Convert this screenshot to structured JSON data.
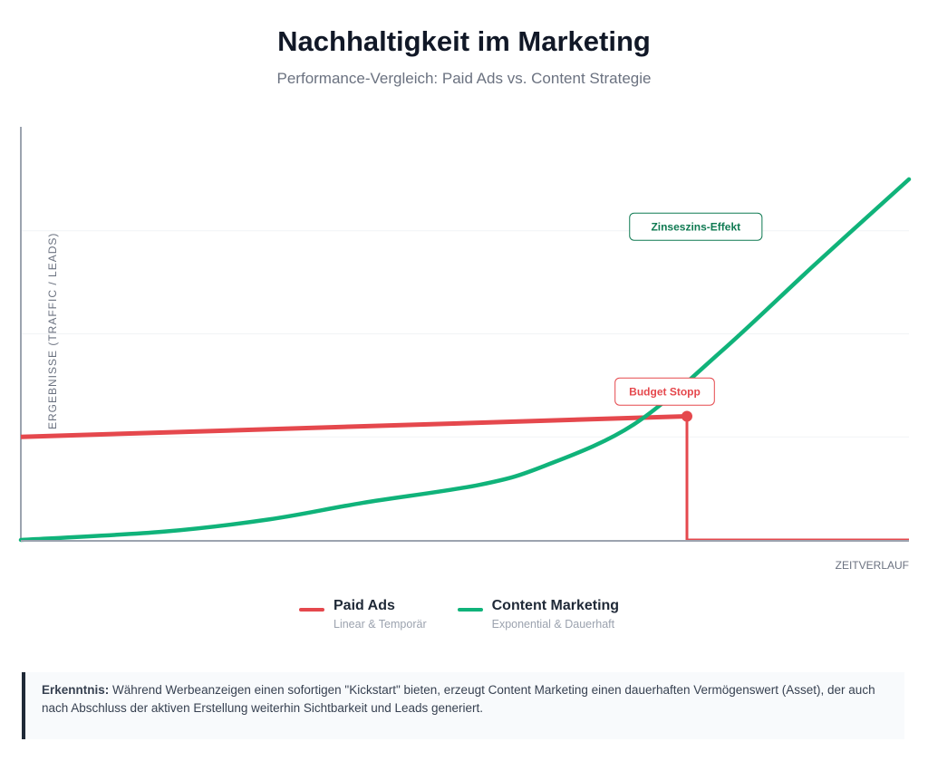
{
  "chart_data": {
    "type": "line",
    "title": "Nachhaltigkeit im Marketing",
    "subtitle": "Performance-Vergleich: Paid Ads vs. Content Strategie",
    "xlabel": "ZEITVERLAUF",
    "ylabel": "ERGEBNISSE (TRAFFIC / LEADS)",
    "xlim": [
      0,
      100
    ],
    "ylim": [
      0,
      100
    ],
    "grid": true,
    "legend_position": "bottom",
    "series": [
      {
        "name": "Paid Ads",
        "description": "Linear & Temporär",
        "color": "#e5484d",
        "points": [
          [
            0,
            25
          ],
          [
            75,
            30
          ],
          [
            75,
            0
          ],
          [
            100,
            0
          ]
        ]
      },
      {
        "name": "Content Marketing",
        "description": "Exponential & Dauerhaft",
        "color": "#10b37a",
        "points": [
          [
            0,
            0
          ],
          [
            16,
            2
          ],
          [
            28,
            5
          ],
          [
            38.5,
            9
          ],
          [
            51.7,
            13.4
          ],
          [
            59,
            18
          ],
          [
            69,
            28
          ],
          [
            79,
            46
          ],
          [
            89.5,
            67
          ],
          [
            100,
            87.5
          ]
        ]
      }
    ],
    "annotations": [
      {
        "text": "Zinseszins-Effekt",
        "x": 76,
        "y": 76,
        "color": "#0f7a52"
      },
      {
        "text": "Budget Stopp",
        "x": 72.5,
        "y": 36,
        "color": "#e5484d"
      }
    ]
  },
  "insight": {
    "label": "Erkenntnis:",
    "text": " Während Werbeanzeigen einen sofortigen \"Kickstart\" bieten, erzeugt Content Marketing einen dauerhaften Vermögenswert (Asset), der auch nach Abschluss der aktiven Erstellung weiterhin Sichtbarkeit und Leads generiert."
  }
}
